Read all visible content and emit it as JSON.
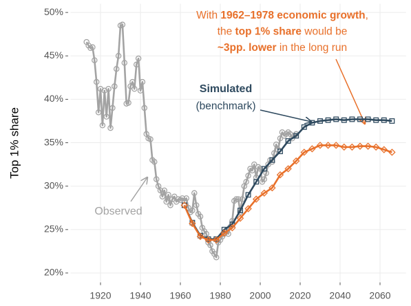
{
  "chart_data": {
    "type": "line",
    "ylabel": "Top 1% share",
    "xlim": [
      1905,
      2073
    ],
    "ylim": [
      19,
      51
    ],
    "xticks": [
      1920,
      1940,
      1960,
      1980,
      2000,
      2020,
      2040,
      2060
    ],
    "yticks": [
      {
        "value": 20,
        "label": "20%"
      },
      {
        "value": 25,
        "label": "25%"
      },
      {
        "value": 30,
        "label": "30%"
      },
      {
        "value": 35,
        "label": "35%"
      },
      {
        "value": 40,
        "label": "40%"
      },
      {
        "value": 45,
        "label": "45%"
      },
      {
        "value": 50,
        "label": "50%"
      }
    ],
    "grid": true,
    "series": [
      {
        "name": "Observed",
        "color": "#a3a3a3",
        "marker": "circle",
        "x": [
          1913,
          1914,
          1915,
          1916,
          1917,
          1918,
          1919,
          1920,
          1921,
          1922,
          1923,
          1924,
          1925,
          1926,
          1927,
          1928,
          1929,
          1930,
          1931,
          1932,
          1933,
          1934,
          1935,
          1936,
          1937,
          1938,
          1939,
          1940,
          1941,
          1942,
          1943,
          1944,
          1945,
          1946,
          1947,
          1948,
          1949,
          1950,
          1951,
          1952,
          1953,
          1954,
          1955,
          1956,
          1957,
          1958,
          1959,
          1960,
          1961,
          1962,
          1963,
          1964,
          1965,
          1966,
          1967,
          1968,
          1969,
          1970,
          1971,
          1972,
          1973,
          1974,
          1975,
          1976,
          1977,
          1978,
          1979,
          1980,
          1981,
          1982,
          1983,
          1984,
          1985,
          1986,
          1987,
          1988,
          1989,
          1990,
          1991,
          1992,
          1993,
          1994,
          1995,
          1996,
          1997,
          1998,
          1999,
          2000,
          2001,
          2002,
          2003,
          2004,
          2005,
          2006,
          2007,
          2008,
          2009,
          2010,
          2011,
          2012,
          2013,
          2014,
          2015,
          2016,
          2017,
          2018
        ],
        "values": [
          46.6,
          46.2,
          45.9,
          46.0,
          44.5,
          42.0,
          38.5,
          41.2,
          37.0,
          41.0,
          38.0,
          41.2,
          36.7,
          39.0,
          41.5,
          43.5,
          45.0,
          48.5,
          48.6,
          44.2,
          39.5,
          39.6,
          41.5,
          42.0,
          41.2,
          44.0,
          44.7,
          41.0,
          42.0,
          39.0,
          36.0,
          35.5,
          35.4,
          33.0,
          32.8,
          30.8,
          30.0,
          29.5,
          28.8,
          29.5,
          28.2,
          29.0,
          27.8,
          28.5,
          28.8,
          28.2,
          28.5,
          28.4,
          28.6,
          28.3,
          28.6,
          27.5,
          27.0,
          27.2,
          29.2,
          27.8,
          26.8,
          26.5,
          25.2,
          24.8,
          24.5,
          23.5,
          23.2,
          22.5,
          22.2,
          21.8,
          23.5,
          23.8,
          24.2,
          24.5,
          24.8,
          24.5,
          25.3,
          26.0,
          28.3,
          28.5,
          28.5,
          27.0,
          28.5,
          30.0,
          30.5,
          31.2,
          32.0,
          31.8,
          32.5,
          31.0,
          32.2,
          32.0,
          30.5,
          30.8,
          31.5,
          32.5,
          33.0,
          32.8,
          33.8,
          34.8,
          34.2,
          35.5,
          36.2,
          35.8,
          36.0,
          36.2,
          36.0,
          35.5,
          35.8,
          36.0
        ]
      },
      {
        "name": "Simulated",
        "color": "#2f4a5f",
        "marker": "square",
        "x": [
          1962,
          1966,
          1970,
          1974,
          1978,
          1982,
          1986,
          1990,
          1994,
          1998,
          2002,
          2006,
          2010,
          2014,
          2018,
          2022,
          2026,
          2030,
          2034,
          2038,
          2042,
          2046,
          2050,
          2054,
          2058,
          2062,
          2066
        ],
        "values": [
          27.8,
          25.8,
          24.3,
          23.9,
          23.9,
          25.0,
          25.6,
          27.2,
          29.0,
          30.5,
          32.0,
          33.0,
          34.0,
          35.2,
          35.8,
          36.8,
          37.3,
          37.5,
          37.6,
          37.7,
          37.6,
          37.7,
          37.7,
          37.7,
          37.6,
          37.6,
          37.5
        ]
      },
      {
        "color": "#e8702a",
        "marker": "diamond",
        "x": [
          1962,
          1966,
          1970,
          1974,
          1978,
          1982,
          1986,
          1990,
          1994,
          1998,
          2002,
          2006,
          2010,
          2014,
          2018,
          2022,
          2026,
          2030,
          2034,
          2038,
          2042,
          2046,
          2050,
          2054,
          2058,
          2062,
          2066
        ],
        "values": [
          27.8,
          25.7,
          24.2,
          23.8,
          23.8,
          24.6,
          25.2,
          26.3,
          27.4,
          28.5,
          29.2,
          29.8,
          31.3,
          32.0,
          32.9,
          33.9,
          34.3,
          34.7,
          34.7,
          34.7,
          34.5,
          34.5,
          34.6,
          34.6,
          34.5,
          34.2,
          33.9
        ]
      }
    ],
    "annotations": [
      {
        "color": "#e8702a",
        "lines": [
          [
            {
              "text": "With "
            },
            {
              "text": "1962–1978 economic growth",
              "bold": true
            },
            {
              "text": ","
            }
          ],
          [
            {
              "text": "the "
            },
            {
              "text": "top 1% share",
              "bold": true
            },
            {
              "text": " would be"
            }
          ],
          [
            {
              "text": "~3pp. lower",
              "bold": true
            },
            {
              "text": " in the long run"
            }
          ]
        ]
      },
      {
        "color": "#2f4a5f",
        "lines": [
          [
            {
              "text": "(benchmark)"
            }
          ]
        ]
      }
    ]
  }
}
